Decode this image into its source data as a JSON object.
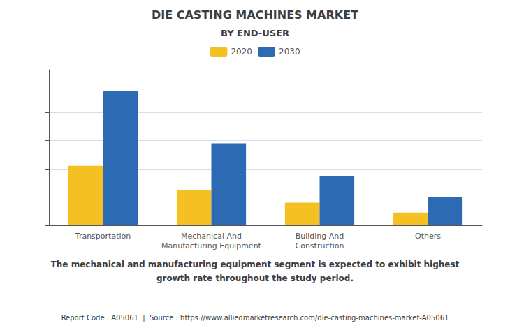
{
  "chart_data": {
    "type": "bar",
    "title": "DIE CASTING MACHINES MARKET",
    "subtitle": "BY END-USER",
    "categories": [
      "Transportation",
      "Mechanical And\nManufacturing Equipment",
      "Building And\nConstruction",
      "Others"
    ],
    "series": [
      {
        "name": "2020",
        "color": "#f5c022",
        "values": [
          4.2,
          2.5,
          1.6,
          0.9
        ]
      },
      {
        "name": "2030",
        "color": "#2d6ab4",
        "values": [
          9.5,
          5.8,
          3.5,
          2.0
        ]
      }
    ],
    "ylim": [
      0,
      11
    ],
    "yticks": [
      0,
      2,
      4,
      6,
      8,
      10
    ],
    "grid": true,
    "legend": "top",
    "tick_labels": "x",
    "annotations": [
      "The mechanical and manufacturing equipment segment is expected to exhibit highest",
      "growth rate throughout the study period.",
      "Report Code : A05061  |  Source : https://www.alliedmarketresearch.com/die-casting-machines-market-A05061"
    ]
  }
}
